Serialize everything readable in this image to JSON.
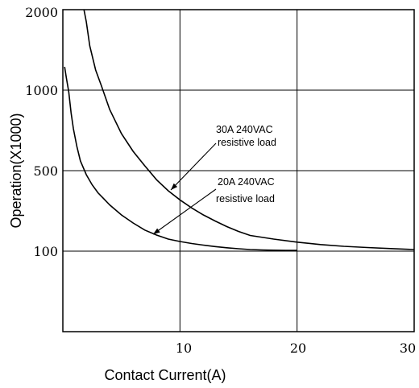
{
  "chart_data": {
    "type": "line",
    "title": "",
    "xlabel": "Contact Current(A)",
    "ylabel": "Operation(X1000)",
    "xlim": [
      0,
      30
    ],
    "x_ticks": [
      10,
      20,
      30
    ],
    "x_tick_labels": [
      "10",
      "20",
      "30"
    ],
    "y_tick_labels": [
      "2000",
      "1000",
      "500",
      "100"
    ],
    "grid": true,
    "series": [
      {
        "name": "30A 240VAC resistive load",
        "x": [
          1.8,
          2.0,
          2.3,
          2.8,
          3.3,
          4.0,
          5.0,
          6.0,
          7.0,
          8.0,
          9.0,
          10.0,
          11.0,
          12.0,
          13.0,
          14.0,
          15.0,
          16.0,
          18.0,
          20.0,
          22.0,
          24.0,
          26.0,
          28.0,
          30.0
        ],
        "y": [
          2000,
          1850,
          1550,
          1250,
          1050,
          880,
          730,
          620,
          530,
          455,
          400,
          355,
          315,
          280,
          250,
          222,
          198,
          178,
          160,
          145,
          133,
          124,
          118,
          113,
          108
        ]
      },
      {
        "name": "20A 240VAC resistive load",
        "x": [
          0.15,
          0.3,
          0.5,
          0.7,
          0.9,
          1.2,
          1.5,
          2.0,
          2.5,
          3.0,
          4.0,
          5.0,
          6.0,
          7.0,
          8.0,
          9.0,
          10.0,
          11.0,
          12.0,
          13.0,
          14.0,
          15.0,
          16.0,
          17.0,
          18.0,
          19.0,
          20.0
        ],
        "y": [
          1290,
          1150,
          990,
          860,
          760,
          650,
          560,
          480,
          430,
          390,
          330,
          280,
          240,
          205,
          180,
          160,
          148,
          138,
          130,
          123,
          117,
          112,
          108,
          106,
          105,
          104,
          104
        ]
      }
    ],
    "annotations": [
      {
        "line1": "30A 240VAC",
        "line2": "resistive load"
      },
      {
        "line1": "20A 240VAC",
        "line2": "resistive load"
      }
    ]
  }
}
